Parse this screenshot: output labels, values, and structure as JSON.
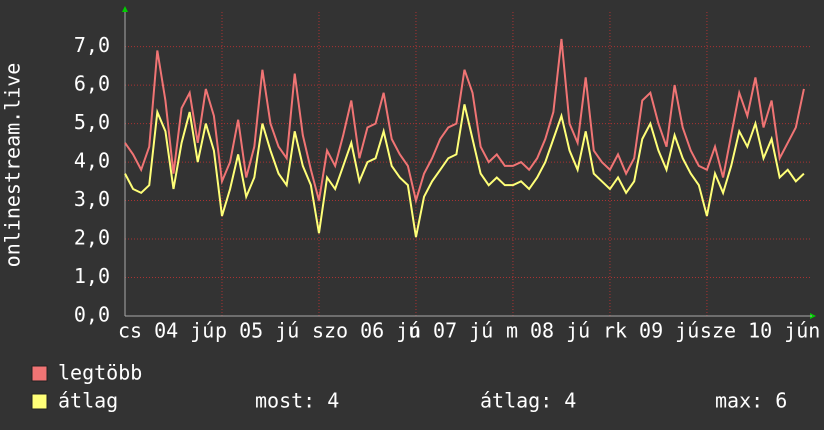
{
  "chart_data": {
    "type": "line",
    "ylabel": "onlinestream.live",
    "x": [
      0,
      2,
      4,
      6,
      8,
      10,
      12,
      14,
      16,
      18,
      20,
      22,
      24,
      26,
      28,
      30,
      32,
      34,
      36,
      38,
      40,
      42,
      44,
      46,
      48,
      50,
      52,
      54,
      56,
      58,
      60,
      62,
      64,
      66,
      68,
      70,
      72,
      74,
      76,
      78,
      80,
      82,
      84,
      86,
      88,
      90,
      92,
      94,
      96,
      98,
      100,
      102,
      104,
      106,
      108,
      110,
      112,
      114,
      116,
      118,
      120,
      122,
      124,
      126,
      128,
      130,
      132,
      134,
      136,
      138,
      140,
      142,
      144,
      146,
      148,
      150,
      152,
      154,
      156,
      158,
      160,
      162,
      164,
      166,
      168
    ],
    "series": [
      {
        "name": "legtöbb",
        "color": "#f07474",
        "values": [
          4.5,
          4.2,
          3.8,
          4.4,
          6.9,
          5.6,
          3.7,
          5.4,
          5.8,
          4.5,
          5.9,
          5.2,
          3.5,
          4.0,
          5.1,
          3.6,
          4.4,
          6.4,
          5.0,
          4.4,
          4.1,
          6.3,
          4.7,
          3.8,
          3.0,
          4.3,
          3.9,
          4.7,
          5.6,
          4.1,
          4.9,
          5.0,
          5.8,
          4.6,
          4.2,
          3.9,
          3.0,
          3.7,
          4.1,
          4.6,
          4.9,
          5.0,
          6.4,
          5.8,
          4.4,
          4.0,
          4.2,
          3.9,
          3.9,
          4.0,
          3.8,
          4.1,
          4.6,
          5.3,
          7.2,
          5.0,
          4.5,
          6.2,
          4.3,
          4.0,
          3.8,
          4.2,
          3.7,
          4.1,
          5.6,
          5.8,
          5.0,
          4.4,
          6.0,
          4.9,
          4.3,
          3.9,
          3.8,
          4.4,
          3.6,
          4.7,
          5.8,
          5.2,
          6.2,
          4.9,
          5.6,
          4.1,
          4.5,
          4.9,
          5.9
        ]
      },
      {
        "name": "átlag",
        "color": "#ffff78",
        "values": [
          3.7,
          3.3,
          3.2,
          3.4,
          5.3,
          4.8,
          3.3,
          4.5,
          5.3,
          4.0,
          5.0,
          4.3,
          2.6,
          3.3,
          4.2,
          3.1,
          3.6,
          5.0,
          4.3,
          3.7,
          3.4,
          4.8,
          3.9,
          3.4,
          2.15,
          3.6,
          3.3,
          3.9,
          4.5,
          3.5,
          4.0,
          4.1,
          4.8,
          3.9,
          3.6,
          3.4,
          2.05,
          3.1,
          3.5,
          3.8,
          4.1,
          4.2,
          5.5,
          4.6,
          3.7,
          3.4,
          3.6,
          3.4,
          3.4,
          3.5,
          3.3,
          3.6,
          4.0,
          4.6,
          5.2,
          4.3,
          3.8,
          4.8,
          3.7,
          3.5,
          3.3,
          3.6,
          3.2,
          3.5,
          4.6,
          5.0,
          4.3,
          3.8,
          4.7,
          4.1,
          3.7,
          3.4,
          2.6,
          3.7,
          3.2,
          3.9,
          4.8,
          4.4,
          5.0,
          4.1,
          4.6,
          3.6,
          3.8,
          3.5,
          3.7
        ]
      }
    ],
    "stats": [
      "most: 4",
      "átlag: 4",
      "max: 6"
    ],
    "xlim": [
      0,
      170
    ],
    "xticks": [
      {
        "value": 0,
        "label": "cs 04 jú"
      },
      {
        "value": 24,
        "label": "p 05 jú"
      },
      {
        "value": 48,
        "label": "szo 06 jú"
      },
      {
        "value": 72,
        "label": "n 07 jú"
      },
      {
        "value": 96,
        "label": "m 08 jú"
      },
      {
        "value": 120,
        "label": "rk 09 jú"
      },
      {
        "value": 144,
        "label": "sze 10 jún"
      }
    ],
    "ylim": [
      0,
      7.9
    ],
    "yticks": [
      {
        "value": 0,
        "label": "0,0"
      },
      {
        "value": 1,
        "label": "1,0"
      },
      {
        "value": 2,
        "label": "2,0"
      },
      {
        "value": 3,
        "label": "3,0"
      },
      {
        "value": 4,
        "label": "4,0"
      },
      {
        "value": 5,
        "label": "5,0"
      },
      {
        "value": 6,
        "label": "6,0"
      },
      {
        "value": 7,
        "label": "7,0"
      }
    ],
    "grid": true
  }
}
